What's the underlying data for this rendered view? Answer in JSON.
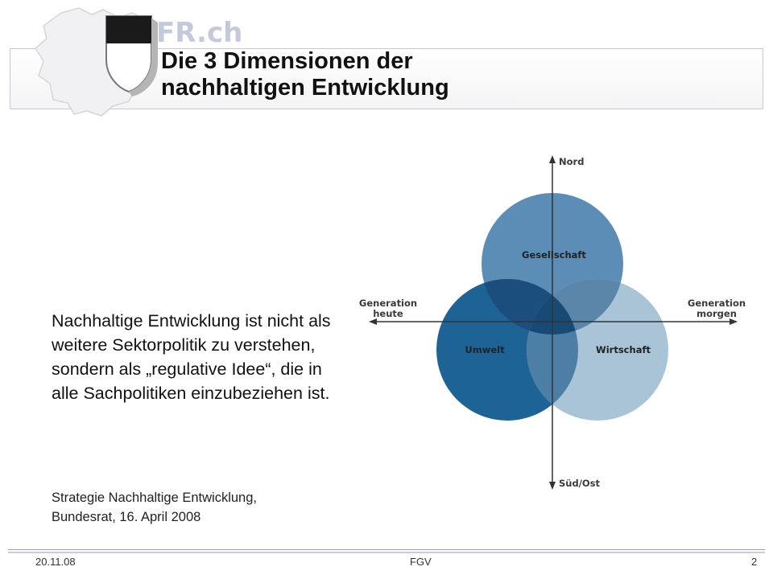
{
  "header": {
    "logo_text": "FR.ch",
    "title_line1": "Die 3 Dimensionen der",
    "title_line2": "nachhaltigen Entwicklung"
  },
  "body": {
    "text": "Nachhaltige Entwicklung ist nicht als weitere Sektorpolitik zu verstehen, sondern als „regulative Idee“, die in alle Sachpolitiken einzubeziehen ist.",
    "source_line1": "Strategie Nachhaltige Entwicklung,",
    "source_line2": "Bundesrat, 16. April 2008"
  },
  "diagram": {
    "axis_top": "Nord",
    "axis_bottom": "Süd/Ost",
    "axis_left_line1": "Generation",
    "axis_left_line2": "heute",
    "axis_right_line1": "Generation",
    "axis_right_line2": "morgen",
    "circle_top": "Gesellschaft",
    "circle_left": "Umwelt",
    "circle_right": "Wirtschaft",
    "colors": {
      "gesellschaft": "#5b8db6",
      "umwelt": "#1e6396",
      "wirtschaft": "#a9c3d7",
      "overlap_top_left": "#1b4e7c",
      "overlap_top_right": "#5b86a9",
      "overlap_left_right": "#4d7ea6",
      "overlap_center": "#184a76"
    }
  },
  "footer": {
    "date": "20.11.08",
    "center": "FGV",
    "page": "2"
  }
}
